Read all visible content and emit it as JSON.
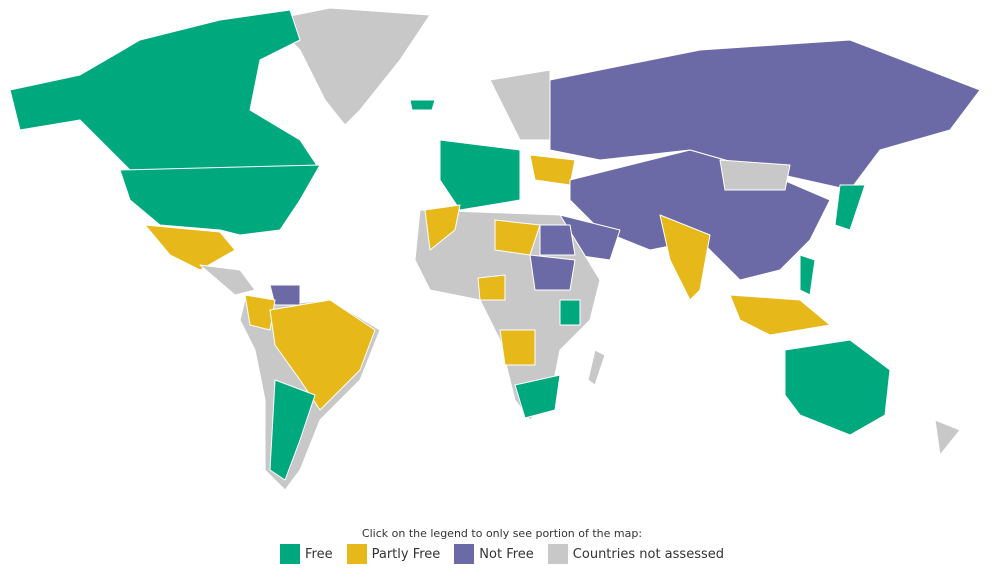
{
  "legend": {
    "instruction": "Click on the legend to only see portion of the map:",
    "items": [
      {
        "label": "Free",
        "color": "#00a87e"
      },
      {
        "label": "Partly Free",
        "color": "#e6b819"
      },
      {
        "label": "Not Free",
        "color": "#6b6aa6"
      },
      {
        "label": "Countries not assessed",
        "color": "#c8c8c8"
      }
    ]
  }
}
